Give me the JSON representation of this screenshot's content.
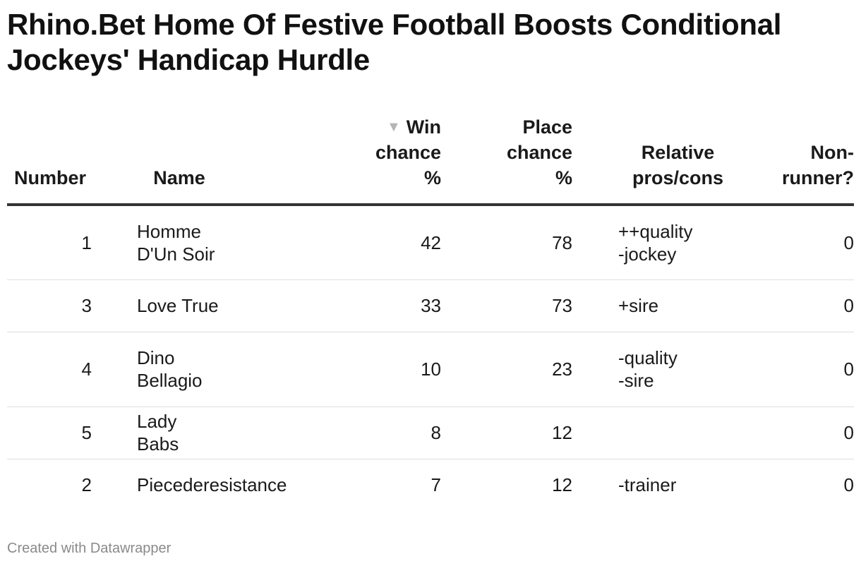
{
  "title": "Rhino.Bet Home Of Festive Football Boosts Conditional Jockeys' Handicap Hurdle",
  "columns": {
    "number": [
      "Number"
    ],
    "name": [
      "Name"
    ],
    "win": [
      "Win",
      "chance",
      "%"
    ],
    "place": [
      "Place",
      "chance",
      "%"
    ],
    "relative": [
      "Relative",
      "pros/cons"
    ],
    "nonrunner": [
      "Non-",
      "runner?"
    ]
  },
  "sort_indicator": "▼",
  "rows": [
    {
      "number": "1",
      "name": "Homme D'Un Soir",
      "win": "42",
      "place": "78",
      "pros_cons": [
        "++quality",
        "-jockey"
      ],
      "non_runner": "0"
    },
    {
      "number": "3",
      "name": "Love True",
      "win": "33",
      "place": "73",
      "pros_cons": [
        "+sire"
      ],
      "non_runner": "0"
    },
    {
      "number": "4",
      "name": "Dino Bellagio",
      "win": "10",
      "place": "23",
      "pros_cons": [
        "-quality",
        "-sire"
      ],
      "non_runner": "0"
    },
    {
      "number": "5",
      "name": "Lady Babs",
      "win": "8",
      "place": "12",
      "pros_cons": [],
      "non_runner": "0"
    },
    {
      "number": "2",
      "name": "Piecederesistance",
      "win": "7",
      "place": "12",
      "pros_cons": [
        "-trainer"
      ],
      "non_runner": "0"
    }
  ],
  "footer": "Created with Datawrapper"
}
